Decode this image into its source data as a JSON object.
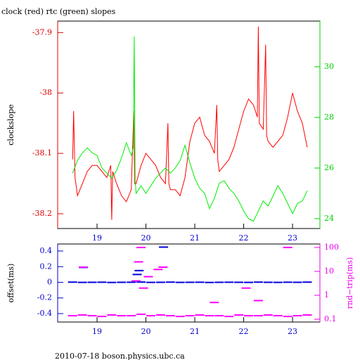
{
  "chart_data": [
    {
      "type": "line",
      "title": "clock (red) rtc (green) slopes",
      "ylabel": "clockslope",
      "xlim": [
        18.194,
        23.56
      ],
      "xticks": [
        19,
        20,
        21,
        22,
        23
      ],
      "xtick_color": "#0000cc",
      "ylim": [
        -38.2244,
        -37.881
      ],
      "yticks": [
        -38.2,
        -38.1,
        -38,
        -37.9
      ],
      "ytick_color": "#e00000",
      "y2lim": [
        23.61,
        31.806
      ],
      "y2ticks": [
        24,
        26,
        28,
        30
      ],
      "y2tick_color": "#00d000",
      "series": [
        {
          "color": "#ff0000",
          "axis": "y",
          "x": [
            18.5,
            18.52,
            18.55,
            18.6,
            18.7,
            18.8,
            18.9,
            19.0,
            19.1,
            19.2,
            19.28,
            19.3,
            19.32,
            19.4,
            19.5,
            19.6,
            19.7,
            19.75,
            19.77,
            19.8,
            19.9,
            20.0,
            20.1,
            20.2,
            20.3,
            20.4,
            20.45,
            20.47,
            20.5,
            20.6,
            20.7,
            20.8,
            20.9,
            21.0,
            21.1,
            21.2,
            21.3,
            21.4,
            21.45,
            21.47,
            21.5,
            21.6,
            21.7,
            21.8,
            21.9,
            22.0,
            22.1,
            22.2,
            22.28,
            22.3,
            22.32,
            22.4,
            22.45,
            22.47,
            22.5,
            22.6,
            22.7,
            22.8,
            22.9,
            23.0,
            23.1,
            23.2,
            23.3
          ],
          "values": [
            -38.11,
            -38.03,
            -38.14,
            -38.17,
            -38.15,
            -38.13,
            -38.12,
            -38.12,
            -38.13,
            -38.14,
            -38.12,
            -38.21,
            -38.13,
            -38.15,
            -38.17,
            -38.18,
            -38.16,
            -38.03,
            -38.15,
            -38.15,
            -38.12,
            -38.1,
            -38.11,
            -38.12,
            -38.14,
            -38.15,
            -38.05,
            -38.15,
            -38.16,
            -38.16,
            -38.17,
            -38.14,
            -38.08,
            -38.05,
            -38.04,
            -38.07,
            -38.08,
            -38.1,
            -38.02,
            -38.11,
            -38.13,
            -38.12,
            -38.11,
            -38.09,
            -38.06,
            -38.03,
            -38.01,
            -38.02,
            -38.04,
            -37.89,
            -38.05,
            -38.06,
            -37.92,
            -38.07,
            -38.08,
            -38.09,
            -38.08,
            -38.07,
            -38.04,
            -38.0,
            -38.03,
            -38.05,
            -38.09
          ]
        },
        {
          "color": "#00ee00",
          "axis": "y2",
          "x": [
            18.5,
            18.6,
            18.7,
            18.8,
            18.9,
            19.0,
            19.1,
            19.2,
            19.3,
            19.4,
            19.5,
            19.6,
            19.7,
            19.74,
            19.76,
            19.78,
            19.8,
            19.9,
            20.0,
            20.1,
            20.2,
            20.3,
            20.4,
            20.5,
            20.6,
            20.7,
            20.8,
            20.9,
            21.0,
            21.1,
            21.2,
            21.3,
            21.4,
            21.5,
            21.6,
            21.7,
            21.8,
            21.9,
            22.0,
            22.1,
            22.2,
            22.3,
            22.4,
            22.5,
            22.6,
            22.7,
            22.8,
            22.9,
            23.0,
            23.1,
            23.2,
            23.3
          ],
          "values": [
            25.8,
            26.3,
            26.6,
            26.8,
            26.6,
            26.5,
            26.0,
            25.8,
            25.6,
            25.9,
            26.4,
            27.0,
            26.5,
            26.8,
            31.2,
            25.5,
            25.0,
            25.3,
            25.0,
            25.3,
            25.6,
            25.8,
            26.0,
            25.8,
            26.0,
            26.3,
            26.9,
            26.2,
            25.6,
            25.2,
            25.0,
            24.4,
            24.8,
            25.4,
            25.5,
            25.2,
            25.0,
            24.7,
            24.3,
            24.0,
            23.9,
            24.3,
            24.7,
            24.5,
            24.9,
            25.3,
            25.0,
            24.6,
            24.2,
            24.6,
            24.7,
            25.1
          ]
        }
      ]
    },
    {
      "type": "scatter",
      "ylabel": "offset(ms)",
      "y2label": "rnd−trip(ms)",
      "xlim": [
        18.194,
        23.56
      ],
      "xticks": [
        19,
        20,
        21,
        22,
        23
      ],
      "xtick_color": "#0000cc",
      "ylim": [
        -0.508,
        0.49
      ],
      "yticks": [
        -0.4,
        -0.2,
        0,
        0.2,
        0.4
      ],
      "ytick_color": "#0000cc",
      "y2lim": [
        0.076,
        140
      ],
      "y2ticks": [
        0.1,
        1,
        10,
        100
      ],
      "y2log": true,
      "y2tick_color": "#ee00ee",
      "series": [
        {
          "color": "#0000dd",
          "axis": "y",
          "x": [
            18.5,
            18.7,
            18.9,
            19.1,
            19.3,
            19.5,
            19.7,
            19.9,
            20.1,
            20.3,
            20.5,
            20.7,
            20.9,
            21.1,
            21.3,
            21.5,
            21.7,
            21.9,
            22.1,
            22.3,
            22.5,
            22.7,
            22.9,
            23.1,
            23.3,
            18.72,
            19.82,
            19.86,
            20.36
          ],
          "values": [
            0.002,
            -0.001,
            0,
            0.001,
            -0.002,
            0,
            0.001,
            0.003,
            -0.001,
            0,
            0.002,
            -0.001,
            0,
            0.001,
            -0.002,
            0,
            0.001,
            0,
            -0.001,
            0.002,
            0,
            -0.001,
            0.001,
            0,
            0.002,
            0.19,
            0.1,
            0.15,
            0.45
          ]
        },
        {
          "color": "#ff00ff",
          "axis": "y2",
          "x": [
            18.5,
            18.7,
            18.9,
            19.1,
            19.3,
            19.5,
            19.7,
            19.9,
            20.1,
            20.3,
            20.5,
            20.7,
            20.9,
            21.1,
            21.3,
            21.5,
            21.7,
            21.9,
            22.1,
            22.3,
            22.5,
            22.7,
            22.9,
            23.1,
            23.3,
            18.72,
            19.8,
            19.85,
            19.9,
            19.95,
            20.05,
            20.25,
            20.35,
            21.4,
            22.9,
            22.3,
            22.05
          ],
          "values": [
            0.14,
            0.15,
            0.14,
            0.13,
            0.15,
            0.14,
            0.14,
            0.16,
            0.14,
            0.15,
            0.14,
            0.13,
            0.14,
            0.15,
            0.14,
            0.14,
            0.13,
            0.15,
            0.14,
            0.14,
            0.15,
            0.14,
            0.13,
            0.14,
            0.15,
            15,
            4,
            25,
            100,
            2,
            6,
            12,
            15,
            0.5,
            100,
            0.6,
            2
          ]
        }
      ]
    }
  ],
  "footer": "2010-07-18 boson.physics.ubc.ca"
}
